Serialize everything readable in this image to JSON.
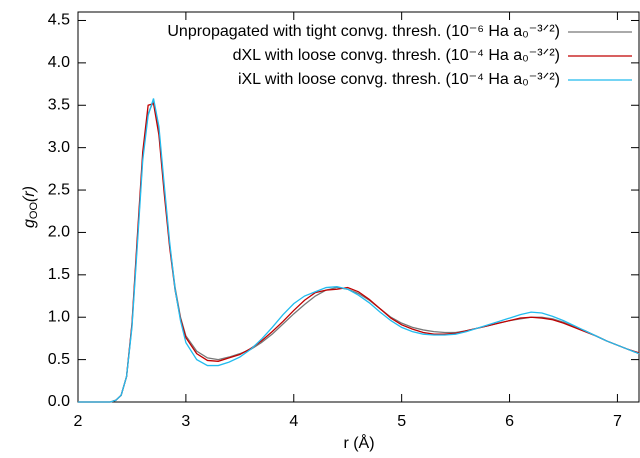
{
  "chart_data": {
    "type": "line",
    "x_label": "r (Å)",
    "y_label": [
      "g",
      "OO",
      "(r)"
    ],
    "x": [
      2.0,
      2.2,
      2.3,
      2.35,
      2.4,
      2.45,
      2.5,
      2.55,
      2.6,
      2.65,
      2.7,
      2.75,
      2.8,
      2.85,
      2.9,
      2.95,
      3.0,
      3.1,
      3.2,
      3.3,
      3.4,
      3.5,
      3.6,
      3.7,
      3.8,
      3.9,
      4.0,
      4.1,
      4.2,
      4.3,
      4.4,
      4.5,
      4.6,
      4.7,
      4.8,
      4.9,
      5.0,
      5.1,
      5.2,
      5.3,
      5.4,
      5.5,
      5.6,
      5.7,
      5.8,
      5.9,
      6.0,
      6.1,
      6.2,
      6.3,
      6.4,
      6.5,
      6.6,
      6.7,
      6.8,
      6.9,
      7.0,
      7.1,
      7.2
    ],
    "series": [
      {
        "name": "Unpropagated with tight convg. thresh. (10⁻⁶ Ha a₀⁻³ᐟ²)",
        "color": "#777777",
        "values": [
          0,
          0,
          0,
          0.02,
          0.08,
          0.3,
          0.9,
          1.9,
          2.9,
          3.4,
          3.55,
          3.2,
          2.5,
          1.85,
          1.35,
          1.0,
          0.78,
          0.6,
          0.52,
          0.5,
          0.53,
          0.57,
          0.62,
          0.7,
          0.8,
          0.92,
          1.04,
          1.15,
          1.25,
          1.32,
          1.35,
          1.33,
          1.28,
          1.2,
          1.1,
          1.0,
          0.93,
          0.88,
          0.85,
          0.83,
          0.82,
          0.82,
          0.84,
          0.87,
          0.9,
          0.93,
          0.96,
          0.98,
          1.0,
          1.0,
          0.98,
          0.94,
          0.89,
          0.84,
          0.78,
          0.72,
          0.67,
          0.62,
          0.57
        ]
      },
      {
        "name": "dXL with loose convg. thresh. (10⁻⁴ Ha a₀⁻³ᐟ²)",
        "color": "#c00000",
        "values": [
          0,
          0,
          0,
          0.02,
          0.08,
          0.3,
          0.92,
          1.95,
          2.95,
          3.5,
          3.52,
          3.15,
          2.45,
          1.82,
          1.32,
          0.98,
          0.76,
          0.57,
          0.49,
          0.48,
          0.52,
          0.56,
          0.63,
          0.72,
          0.83,
          0.95,
          1.08,
          1.2,
          1.29,
          1.32,
          1.33,
          1.35,
          1.3,
          1.21,
          1.1,
          0.99,
          0.91,
          0.86,
          0.82,
          0.8,
          0.8,
          0.81,
          0.84,
          0.87,
          0.9,
          0.93,
          0.96,
          0.99,
          1.0,
          0.99,
          0.97,
          0.93,
          0.88,
          0.83,
          0.78,
          0.72,
          0.67,
          0.62,
          0.58
        ]
      },
      {
        "name": "iXL with loose convg. thresh. (10⁻⁴ Ha a₀⁻³ᐟ²)",
        "color": "#22bbee",
        "values": [
          0,
          0,
          0,
          0.02,
          0.08,
          0.3,
          0.88,
          1.85,
          2.85,
          3.38,
          3.58,
          3.25,
          2.55,
          1.88,
          1.33,
          0.96,
          0.7,
          0.5,
          0.43,
          0.43,
          0.47,
          0.53,
          0.62,
          0.74,
          0.88,
          1.03,
          1.16,
          1.25,
          1.3,
          1.35,
          1.36,
          1.33,
          1.26,
          1.17,
          1.06,
          0.96,
          0.88,
          0.83,
          0.8,
          0.79,
          0.79,
          0.8,
          0.83,
          0.87,
          0.91,
          0.95,
          0.99,
          1.03,
          1.06,
          1.05,
          1.01,
          0.96,
          0.9,
          0.84,
          0.78,
          0.72,
          0.67,
          0.62,
          0.57
        ]
      }
    ],
    "xlim": [
      2,
      7.2
    ],
    "ylim": [
      0,
      4.6
    ],
    "xticks": [
      2,
      3,
      4,
      5,
      6,
      7
    ],
    "yticks": [
      {
        "value": 0,
        "label": "0.0"
      },
      {
        "value": 0.5,
        "label": "0.5"
      },
      {
        "value": 1,
        "label": "1.0"
      },
      {
        "value": 1.5,
        "label": "1.5"
      },
      {
        "value": 2,
        "label": "2.0"
      },
      {
        "value": 2.5,
        "label": "2.5"
      },
      {
        "value": 3,
        "label": "3.0"
      },
      {
        "value": 3.5,
        "label": "3.5"
      },
      {
        "value": 4,
        "label": "4.0"
      },
      {
        "value": 4.5,
        "label": "4.5"
      }
    ],
    "legend": "upper right"
  }
}
